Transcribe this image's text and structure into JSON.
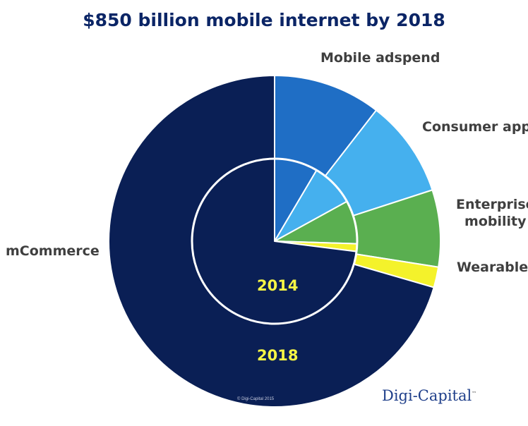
{
  "chart_data": {
    "type": "pie",
    "title": "$850 billion mobile internet by 2018",
    "categories": [
      "Mobile adspend",
      "Consumer apps",
      "Enterprise mobility",
      "Wearables",
      "mCommerce"
    ],
    "category_display": [
      "Mobile adspend",
      "Consumer apps",
      "Enterprise\nmobility",
      "Wearables",
      "mCommerce"
    ],
    "series": [
      {
        "name": "2018",
        "ring": "outer",
        "values": [
          10.5,
          9.5,
          7.5,
          2.0,
          70.5
        ]
      },
      {
        "name": "2014",
        "ring": "inner",
        "values": [
          8.5,
          8.5,
          8.5,
          1.5,
          73.0
        ]
      }
    ],
    "colors": [
      "#1f6ec5",
      "#45b0ee",
      "#5aaf50",
      "#f4f22b",
      "#0a1f55"
    ],
    "separator_color": "#ffffff"
  },
  "copyright": "© Digi-Capital 2015",
  "brand": {
    "name": "Digi-Capital",
    "mark": "™"
  }
}
